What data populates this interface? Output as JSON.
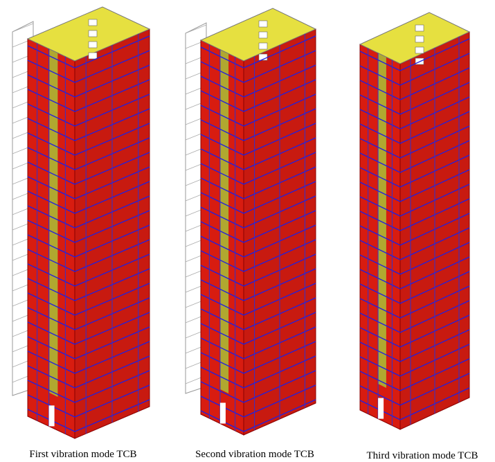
{
  "figures": [
    {
      "caption": "First vibration mode TCB"
    },
    {
      "caption": "Second vibration mode TCB"
    },
    {
      "caption": "Third vibration mode TCB"
    }
  ]
}
